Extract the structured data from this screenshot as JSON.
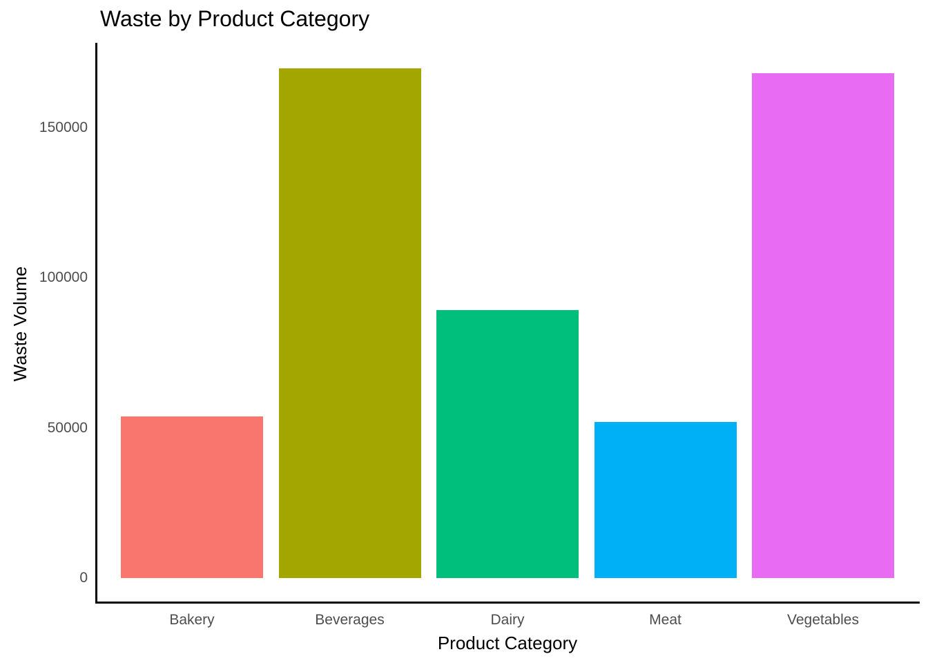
{
  "chart_data": {
    "type": "bar",
    "title": "Waste by Product Category",
    "xlabel": "Product Category",
    "ylabel": "Waste Volume",
    "categories": [
      "Bakery",
      "Beverages",
      "Dairy",
      "Meat",
      "Vegetables"
    ],
    "values": [
      53800,
      169800,
      89300,
      52000,
      168200
    ],
    "colors": [
      "#F8766D",
      "#A3A500",
      "#00BF7D",
      "#00B0F6",
      "#E76BF3"
    ],
    "y_ticks": [
      0,
      50000,
      100000,
      150000
    ],
    "y_tick_labels": [
      "0",
      "50000",
      "100000",
      "150000"
    ],
    "ylim": [
      0,
      178000
    ],
    "grid": false,
    "legend": false,
    "background_color": "#FFFFFF",
    "axis_line_color": "#000000",
    "title_color": "#000000",
    "axis_title_color": "#000000",
    "tick_label_color": "#4D4D4D"
  }
}
